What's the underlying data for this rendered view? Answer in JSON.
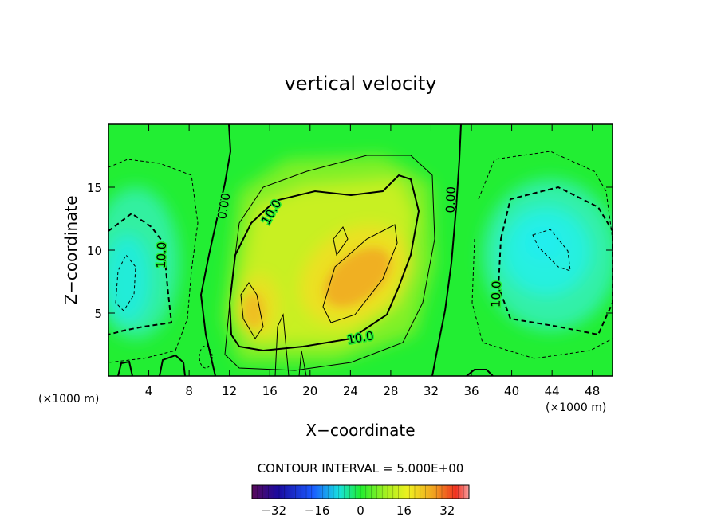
{
  "chart_data": {
    "type": "heatmap",
    "title": "vertical velocity",
    "xlabel": "X−coordinate",
    "ylabel": "Z−coordinate",
    "x_unit_left": "(×1000 m)",
    "x_unit_right": "(×1000 m)",
    "xlim": [
      0,
      50
    ],
    "ylim": [
      0,
      20
    ],
    "x_ticks": [
      4,
      8,
      12,
      16,
      20,
      24,
      28,
      32,
      36,
      40,
      44,
      48
    ],
    "y_ticks": [
      5,
      10,
      15
    ],
    "contour_interval_text": "CONTOUR INTERVAL = 5.000E+00",
    "colorbar": {
      "range": [
        -40,
        40
      ],
      "ticks": [
        -32,
        -16,
        0,
        16,
        32
      ],
      "tick_labels": [
        "−32",
        "−16",
        "0",
        "16",
        "32"
      ]
    },
    "contour_labels": [
      {
        "text": "0.00",
        "x": 11.5,
        "y": 13.5,
        "angle": -80
      },
      {
        "text": "10.0",
        "x": 16.2,
        "y": 13.0,
        "angle": -60
      },
      {
        "text": "10.0",
        "x": 5.3,
        "y": 9.6,
        "angle": -88
      },
      {
        "text": "10.0",
        "x": 25.0,
        "y": 3.0,
        "angle": -10
      },
      {
        "text": "0.00",
        "x": 34.0,
        "y": 14.0,
        "angle": -88
      },
      {
        "text": "10.0",
        "x": 38.5,
        "y": 6.5,
        "angle": -88
      }
    ],
    "colors": {
      "field_background": "#22ee33",
      "updraft_peak": "#f4a020",
      "downdraft_peak": "#22eeee"
    }
  }
}
